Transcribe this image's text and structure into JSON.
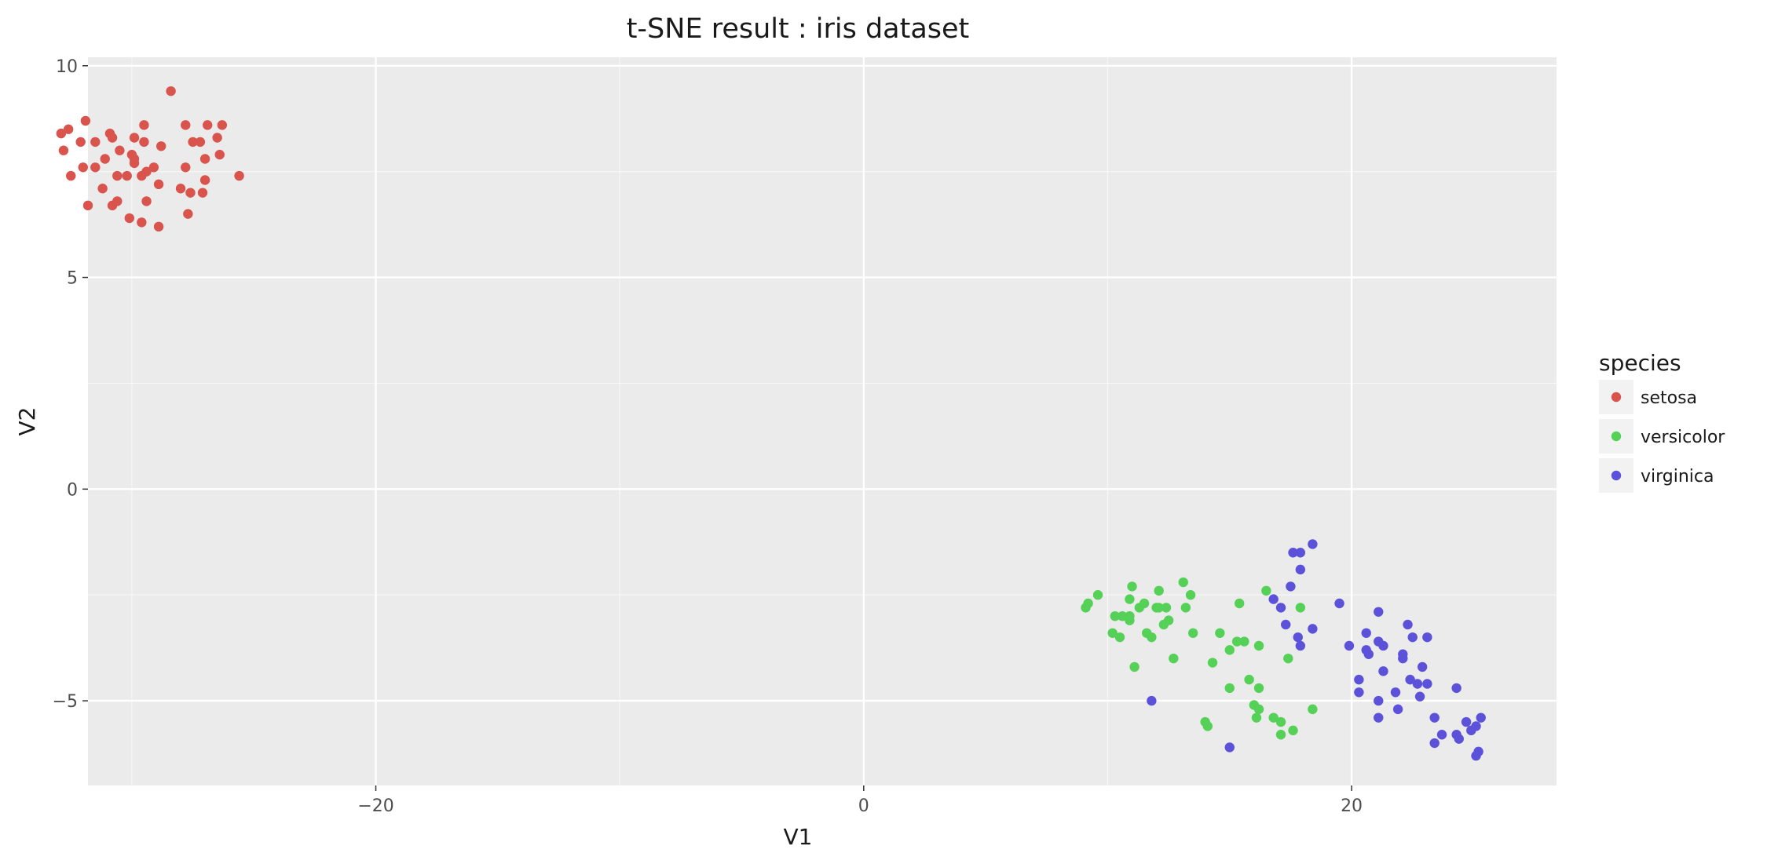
{
  "chart_data": {
    "type": "scatter",
    "title": "t-SNE result : iris dataset",
    "xlabel": "V1",
    "ylabel": "V2",
    "xlim": [
      -31.8,
      28.4
    ],
    "ylim": [
      -7.0,
      10.2
    ],
    "x_ticks": [
      -20,
      0,
      20
    ],
    "x_tick_labels": [
      "−20",
      "0",
      "20"
    ],
    "y_ticks": [
      -5,
      0,
      5,
      10
    ],
    "y_tick_labels": [
      "−5",
      "0",
      "5",
      "10"
    ],
    "grid": true,
    "panel_background": "#ebebeb",
    "legend": {
      "title": "species",
      "position": "right"
    },
    "series": [
      {
        "name": "setosa",
        "color": "#d9544c",
        "points": [
          [
            -28.4,
            9.4
          ],
          [
            -32.9,
            8.4
          ],
          [
            -32.6,
            8.5
          ],
          [
            -31.9,
            8.7
          ],
          [
            -30.9,
            8.4
          ],
          [
            -30.8,
            8.3
          ],
          [
            -29.9,
            8.3
          ],
          [
            -29.5,
            8.6
          ],
          [
            -27.8,
            8.6
          ],
          [
            -26.9,
            8.6
          ],
          [
            -26.3,
            8.6
          ],
          [
            -32.8,
            8.0
          ],
          [
            -32.1,
            8.2
          ],
          [
            -30.5,
            8.0
          ],
          [
            -29.5,
            8.2
          ],
          [
            -28.8,
            8.1
          ],
          [
            -27.5,
            8.2
          ],
          [
            -27.2,
            8.2
          ],
          [
            -26.5,
            8.3
          ],
          [
            -26.4,
            7.9
          ],
          [
            -27.0,
            7.8
          ],
          [
            -29.9,
            7.8
          ],
          [
            -31.1,
            7.8
          ],
          [
            -32.0,
            7.6
          ],
          [
            -31.5,
            7.6
          ],
          [
            -29.9,
            7.7
          ],
          [
            -29.1,
            7.6
          ],
          [
            -27.8,
            7.6
          ],
          [
            -32.5,
            7.4
          ],
          [
            -30.6,
            7.4
          ],
          [
            -30.2,
            7.4
          ],
          [
            -29.6,
            7.4
          ],
          [
            -29.4,
            7.5
          ],
          [
            -27.0,
            7.3
          ],
          [
            -25.6,
            7.4
          ],
          [
            -31.2,
            7.1
          ],
          [
            -28.9,
            7.2
          ],
          [
            -28.0,
            7.1
          ],
          [
            -27.6,
            7.0
          ],
          [
            -27.1,
            7.0
          ],
          [
            -31.8,
            6.7
          ],
          [
            -30.6,
            6.8
          ],
          [
            -30.8,
            6.7
          ],
          [
            -29.4,
            6.8
          ],
          [
            -27.7,
            6.5
          ],
          [
            -30.1,
            6.4
          ],
          [
            -29.6,
            6.3
          ],
          [
            -28.9,
            6.2
          ],
          [
            -30.0,
            7.9
          ],
          [
            -31.5,
            8.2
          ]
        ]
      },
      {
        "name": "versicolor",
        "color": "#54d156",
        "points": [
          [
            9.1,
            -2.8
          ],
          [
            9.2,
            -2.7
          ],
          [
            9.6,
            -2.5
          ],
          [
            10.3,
            -3.0
          ],
          [
            10.6,
            -3.0
          ],
          [
            10.5,
            -3.5
          ],
          [
            10.2,
            -3.4
          ],
          [
            10.9,
            -3.1
          ],
          [
            11.0,
            -2.3
          ],
          [
            11.3,
            -2.8
          ],
          [
            10.9,
            -2.6
          ],
          [
            11.6,
            -3.4
          ],
          [
            11.8,
            -3.5
          ],
          [
            11.1,
            -4.2
          ],
          [
            12.1,
            -2.4
          ],
          [
            12.0,
            -2.8
          ],
          [
            12.4,
            -2.8
          ],
          [
            12.5,
            -3.1
          ],
          [
            12.7,
            -4.0
          ],
          [
            13.1,
            -2.2
          ],
          [
            13.4,
            -2.5
          ],
          [
            13.2,
            -2.8
          ],
          [
            13.5,
            -3.4
          ],
          [
            12.3,
            -3.2
          ],
          [
            14.3,
            -4.1
          ],
          [
            14.6,
            -3.4
          ],
          [
            15.0,
            -3.8
          ],
          [
            15.3,
            -3.6
          ],
          [
            15.6,
            -3.6
          ],
          [
            15.4,
            -2.7
          ],
          [
            16.2,
            -3.7
          ],
          [
            16.5,
            -2.4
          ],
          [
            17.4,
            -4.0
          ],
          [
            17.9,
            -2.8
          ],
          [
            15.0,
            -4.7
          ],
          [
            15.8,
            -4.5
          ],
          [
            16.0,
            -5.1
          ],
          [
            16.1,
            -5.4
          ],
          [
            16.2,
            -4.7
          ],
          [
            16.2,
            -5.2
          ],
          [
            16.8,
            -5.4
          ],
          [
            17.1,
            -5.5
          ],
          [
            17.1,
            -5.8
          ],
          [
            17.6,
            -5.7
          ],
          [
            18.4,
            -5.2
          ],
          [
            14.0,
            -5.5
          ],
          [
            14.1,
            -5.6
          ],
          [
            12.1,
            -2.8
          ],
          [
            11.5,
            -2.7
          ],
          [
            10.9,
            -3.0
          ]
        ]
      },
      {
        "name": "virginica",
        "color": "#5c52d9",
        "points": [
          [
            17.6,
            -1.5
          ],
          [
            17.9,
            -1.5
          ],
          [
            18.4,
            -1.3
          ],
          [
            17.9,
            -1.9
          ],
          [
            17.5,
            -2.3
          ],
          [
            16.8,
            -2.6
          ],
          [
            17.1,
            -2.8
          ],
          [
            17.8,
            -3.5
          ],
          [
            17.3,
            -3.2
          ],
          [
            17.9,
            -3.7
          ],
          [
            18.4,
            -3.3
          ],
          [
            19.5,
            -2.7
          ],
          [
            19.9,
            -3.7
          ],
          [
            20.3,
            -4.5
          ],
          [
            20.3,
            -4.8
          ],
          [
            20.6,
            -3.8
          ],
          [
            20.6,
            -3.4
          ],
          [
            21.1,
            -3.6
          ],
          [
            21.1,
            -2.9
          ],
          [
            21.1,
            -5.0
          ],
          [
            21.1,
            -5.4
          ],
          [
            21.3,
            -3.7
          ],
          [
            21.3,
            -4.3
          ],
          [
            21.8,
            -4.8
          ],
          [
            21.9,
            -5.2
          ],
          [
            22.1,
            -3.9
          ],
          [
            22.3,
            -3.2
          ],
          [
            22.4,
            -4.5
          ],
          [
            22.5,
            -3.5
          ],
          [
            22.7,
            -4.6
          ],
          [
            22.8,
            -4.9
          ],
          [
            22.9,
            -4.2
          ],
          [
            23.1,
            -3.5
          ],
          [
            23.1,
            -4.6
          ],
          [
            23.4,
            -5.4
          ],
          [
            23.7,
            -5.8
          ],
          [
            23.4,
            -6.0
          ],
          [
            24.3,
            -5.8
          ],
          [
            24.4,
            -5.9
          ],
          [
            24.3,
            -4.7
          ],
          [
            24.7,
            -5.5
          ],
          [
            24.9,
            -5.7
          ],
          [
            25.1,
            -5.6
          ],
          [
            25.1,
            -6.3
          ],
          [
            25.2,
            -6.2
          ],
          [
            25.3,
            -5.4
          ],
          [
            20.7,
            -3.9
          ],
          [
            11.8,
            -5.0
          ],
          [
            15.0,
            -6.1
          ],
          [
            22.1,
            -4.0
          ]
        ]
      }
    ]
  }
}
